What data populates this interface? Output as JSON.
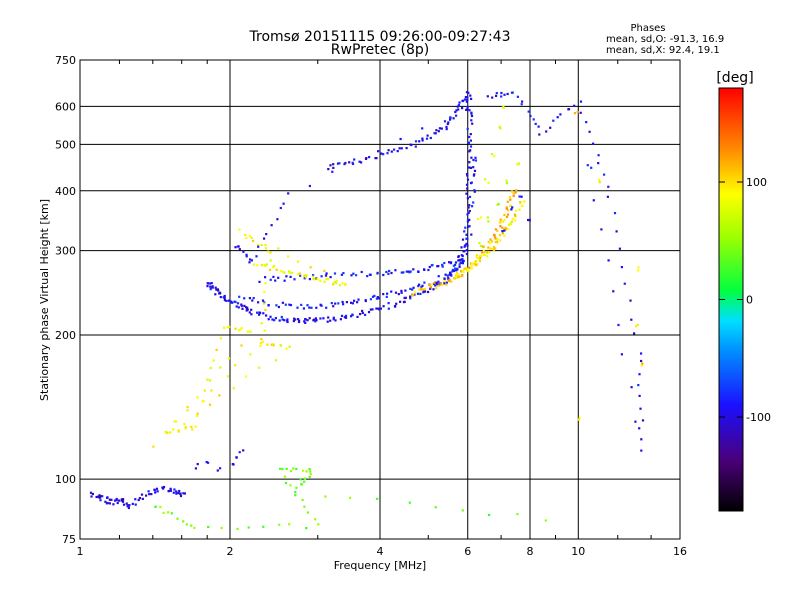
{
  "chart_data": {
    "type": "scatter",
    "title": "Tromsø 20151115 09:26:00-09:27:43",
    "subtitle": "RwPretec (8p)",
    "xlabel": "Frequency [MHz]",
    "ylabel": "Stationary phase Virtual Height [km]",
    "x_scale": "log",
    "y_scale": "log",
    "xlim": [
      1,
      16
    ],
    "ylim": [
      75,
      750
    ],
    "x_ticks": [
      1,
      2,
      4,
      6,
      8,
      10,
      16
    ],
    "y_ticks": [
      75,
      100,
      200,
      300,
      400,
      500,
      600,
      750
    ],
    "grid": true,
    "info": {
      "heading": "Phases",
      "line_o": "mean, sd,O: -91.3, 16.9",
      "line_x": "mean, sd,X:  92.4, 19.1"
    },
    "colorbar": {
      "label": "[deg]",
      "ticks": [
        100,
        0,
        -100
      ],
      "range": [
        -180,
        180
      ]
    },
    "series": [
      {
        "points": [
          [
            1.8,
            258
          ],
          [
            1.85,
            252
          ],
          [
            1.9,
            243
          ],
          [
            2.0,
            236
          ],
          [
            2.1,
            230
          ],
          [
            2.2,
            224
          ],
          [
            2.4,
            219
          ],
          [
            2.6,
            216
          ],
          [
            2.8,
            215
          ],
          [
            3.0,
            216
          ],
          [
            3.3,
            218
          ],
          [
            3.6,
            222
          ],
          [
            4.0,
            228
          ],
          [
            4.4,
            236
          ],
          [
            4.8,
            245
          ],
          [
            5.2,
            255
          ],
          [
            5.5,
            265
          ],
          [
            5.7,
            280
          ],
          [
            5.85,
            305
          ],
          [
            5.95,
            350
          ],
          [
            6.0,
            420
          ],
          [
            6.02,
            500
          ],
          [
            6.03,
            580
          ],
          [
            6.0,
            640
          ]
        ],
        "phase": -95
      },
      {
        "points": [
          [
            2.1,
            240
          ],
          [
            2.4,
            233
          ],
          [
            2.8,
            230
          ],
          [
            3.2,
            232
          ],
          [
            3.6,
            236
          ],
          [
            4.0,
            242
          ],
          [
            4.5,
            250
          ],
          [
            5.0,
            258
          ],
          [
            5.5,
            268
          ],
          [
            5.8,
            285
          ],
          [
            6.0,
            320
          ],
          [
            6.1,
            400
          ],
          [
            6.15,
            470
          ]
        ],
        "phase": -90
      },
      {
        "points": [
          [
            2.3,
            262
          ],
          [
            2.7,
            265
          ],
          [
            3.2,
            268
          ],
          [
            3.8,
            270
          ],
          [
            4.3,
            272
          ],
          [
            4.8,
            275
          ],
          [
            5.3,
            280
          ],
          [
            5.8,
            285
          ]
        ],
        "phase": -85
      },
      {
        "points": [
          [
            3.1,
            450
          ],
          [
            3.5,
            460
          ],
          [
            4.0,
            478
          ],
          [
            4.5,
            495
          ],
          [
            5.0,
            520
          ],
          [
            5.4,
            550
          ],
          [
            5.7,
            590
          ],
          [
            5.9,
            625
          ]
        ],
        "phase": -95
      },
      {
        "points": [
          [
            4.6,
            245
          ],
          [
            5.0,
            252
          ],
          [
            5.4,
            260
          ],
          [
            5.8,
            270
          ],
          [
            6.1,
            282
          ],
          [
            6.4,
            300
          ],
          [
            6.7,
            320
          ],
          [
            7.0,
            345
          ],
          [
            7.2,
            370
          ],
          [
            7.4,
            400
          ]
        ],
        "phase": 110
      },
      {
        "points": [
          [
            5.6,
            265
          ],
          [
            5.9,
            272
          ],
          [
            6.2,
            282
          ],
          [
            6.5,
            295
          ],
          [
            6.8,
            310
          ],
          [
            7.1,
            330
          ],
          [
            7.4,
            350
          ],
          [
            7.7,
            380
          ]
        ],
        "phase": 95
      },
      {
        "points": [
          [
            6.3,
            350
          ],
          [
            6.5,
            420
          ],
          [
            6.7,
            480
          ],
          [
            6.9,
            540
          ],
          [
            7.0,
            600
          ]
        ],
        "phase": 80
      },
      {
        "points": [
          [
            6.3,
            310
          ],
          [
            6.6,
            350
          ],
          [
            6.9,
            380
          ],
          [
            7.2,
            420
          ],
          [
            7.5,
            460
          ]
        ],
        "phase": 60
      },
      {
        "points": [
          [
            7.0,
            330
          ],
          [
            7.3,
            370
          ],
          [
            7.6,
            390
          ],
          [
            7.9,
            350
          ]
        ],
        "phase": -90
      },
      {
        "points": [
          [
            1.05,
            94
          ],
          [
            1.1,
            92
          ],
          [
            1.15,
            90
          ],
          [
            1.2,
            91
          ],
          [
            1.25,
            88
          ],
          [
            1.35,
            94
          ],
          [
            1.45,
            96
          ],
          [
            1.55,
            95
          ],
          [
            1.6,
            93
          ]
        ],
        "phase": -100
      },
      {
        "points": [
          [
            1.7,
            107
          ],
          [
            1.8,
            109
          ],
          [
            1.9,
            106
          ],
          [
            2.0,
            108
          ],
          [
            2.05,
            112
          ],
          [
            2.1,
            115
          ]
        ],
        "phase": -100
      },
      {
        "points": [
          [
            2.25,
            285
          ],
          [
            2.5,
            275
          ],
          [
            2.8,
            268
          ],
          [
            3.1,
            262
          ],
          [
            3.4,
            256
          ],
          [
            2.1,
            330
          ],
          [
            2.4,
            300
          ],
          [
            2.3,
            195
          ],
          [
            2.6,
            188
          ],
          [
            1.5,
            125
          ],
          [
            1.7,
            130
          ],
          [
            1.95,
            210
          ],
          [
            2.2,
            205
          ],
          [
            1.4,
            118
          ],
          [
            2.3,
            192
          ]
        ],
        "phase": 90
      },
      {
        "points": [
          [
            2.05,
            310
          ],
          [
            2.2,
            285
          ],
          [
            2.6,
            395
          ],
          [
            6.6,
            630
          ],
          [
            7.4,
            650
          ],
          [
            8.4,
            530
          ],
          [
            10.0,
            620
          ],
          [
            11.5,
            390
          ],
          [
            13.2,
            185
          ],
          [
            13.3,
            115
          ],
          [
            10.5,
            450
          ]
        ],
        "phase": -95
      },
      {
        "points": [
          [
            9.9,
            590
          ],
          [
            11.0,
            420
          ],
          [
            13.0,
            275
          ],
          [
            13.1,
            210
          ],
          [
            13.4,
            175
          ],
          [
            9.9,
            135
          ]
        ],
        "phase": 105
      },
      {
        "points": [
          [
            8.6,
            83
          ],
          [
            2.7,
            95
          ],
          [
            2.9,
            105
          ],
          [
            2.5,
            106
          ],
          [
            3.0,
            80
          ],
          [
            1.7,
            80
          ],
          [
            1.4,
            88
          ]
        ],
        "phase": 40
      }
    ]
  }
}
